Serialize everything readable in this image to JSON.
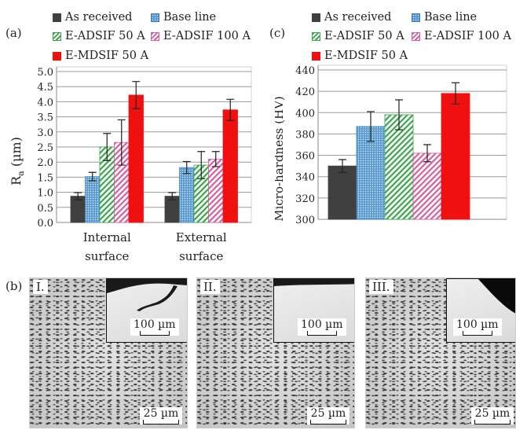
{
  "panels": {
    "a": "(a)",
    "b": "(b)",
    "c": "(c)"
  },
  "legend": {
    "as_received": "As received",
    "base_line": "Base line",
    "e_adsif_50": "E-ADSIF 50 A",
    "e_adsif_100": "E-ADSIF 100 A",
    "e_mdsif_50": "E-MDSIF 50 A"
  },
  "colors": {
    "as_received": "#404040",
    "base_line": "#5b9bd5",
    "e_adsif_50": "#3aa54a",
    "e_adsif_100": "#d35fa0",
    "e_mdsif_50": "#f01010"
  },
  "chart_data": [
    {
      "type": "bar",
      "title": "",
      "ylabel": "Ra (µm)",
      "ylabel_main": "R",
      "ylabel_sub": "a",
      "ylabel_unit": " (µm)",
      "ylim": [
        0,
        5
      ],
      "yticks": [
        "0.0",
        "0.5",
        "1.0",
        "1.5",
        "2.0",
        "2.5",
        "3.0",
        "3.5",
        "4.0",
        "4.5",
        "5.0"
      ],
      "categories": [
        [
          "Internal",
          "surface"
        ],
        [
          "External",
          "surface"
        ]
      ],
      "grid": true,
      "series": [
        {
          "name": "As received",
          "values": [
            0.87,
            0.87
          ],
          "errors": [
            0.12,
            0.12
          ]
        },
        {
          "name": "Base line",
          "values": [
            1.52,
            1.82
          ],
          "errors": [
            0.14,
            0.2
          ]
        },
        {
          "name": "E-ADSIF 50 A",
          "values": [
            2.5,
            1.9
          ],
          "errors": [
            0.45,
            0.45
          ]
        },
        {
          "name": "E-ADSIF 100 A",
          "values": [
            2.65,
            2.1
          ],
          "errors": [
            0.75,
            0.25
          ]
        },
        {
          "name": "E-MDSIF 50 A",
          "values": [
            4.22,
            3.73
          ],
          "errors": [
            0.45,
            0.35
          ]
        }
      ]
    },
    {
      "type": "bar",
      "title": "",
      "ylabel": "Micro-hardness (HV)",
      "ylim": [
        300,
        440
      ],
      "yticks": [
        "300",
        "320",
        "340",
        "360",
        "380",
        "400",
        "420",
        "440"
      ],
      "categories": [
        ""
      ],
      "grid": true,
      "series": [
        {
          "name": "As received",
          "values": [
            350
          ],
          "errors": [
            6
          ]
        },
        {
          "name": "Base line",
          "values": [
            387
          ],
          "errors": [
            14
          ]
        },
        {
          "name": "E-ADSIF 50 A",
          "values": [
            398
          ],
          "errors": [
            14
          ]
        },
        {
          "name": "E-ADSIF 100 A",
          "values": [
            362
          ],
          "errors": [
            8
          ]
        },
        {
          "name": "E-MDSIF 50 A",
          "values": [
            418
          ],
          "errors": [
            10
          ]
        }
      ]
    }
  ],
  "micrographs": [
    {
      "label": "I.",
      "inset_scale": "100 µm",
      "scale": "25 µm"
    },
    {
      "label": "II.",
      "inset_scale": "100 µm",
      "scale": "25 µm"
    },
    {
      "label": "III.",
      "inset_scale": "100 µm",
      "scale": "25 µm"
    }
  ]
}
